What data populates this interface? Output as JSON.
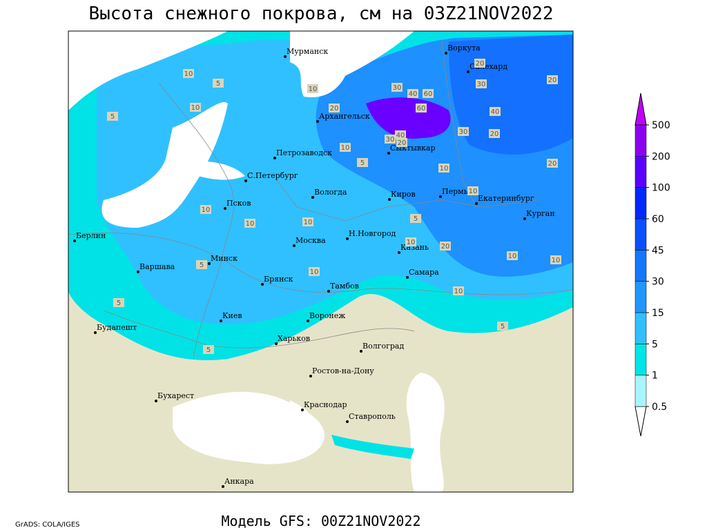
{
  "title": "Высота снежного покрова, см на 03Z21NOV2022",
  "footer": "Модель GFS: 00Z21NOV2022",
  "credit": "GrADS: COLA/IGES",
  "cities": [
    "Мурманск",
    "Воркута",
    "Салехард",
    "Архангельск",
    "Сыктывкар",
    "Петрозаводск",
    "С.Петербург",
    "Вологда",
    "Киров",
    "Пермь",
    "Екатеринбург",
    "Курган",
    "Псков",
    "Берлин",
    "Н.Новгород",
    "Москва",
    "Казань",
    "Минск",
    "Варшава",
    "Самара",
    "Брянск",
    "Тамбов",
    "Киев",
    "Воронеж",
    "Будапешт",
    "Харьков",
    "Волгоград",
    "Ростов-на-Дону",
    "Бухарест",
    "Краснодар",
    "Ставрополь",
    "Анкара"
  ],
  "contour_labels": [
    10,
    5,
    10,
    10,
    5,
    20,
    10,
    30,
    40,
    60,
    60,
    40,
    30,
    20,
    20,
    30,
    40,
    20,
    30,
    20,
    10,
    5,
    10,
    10,
    10,
    10,
    5,
    10,
    5,
    20,
    10,
    10,
    5,
    5,
    5,
    10,
    10,
    20
  ],
  "legend": {
    "levels": [
      0.5,
      1,
      5,
      15,
      30,
      45,
      60,
      100,
      200,
      500
    ],
    "colors": [
      "#ffffff",
      "#a8f4ff",
      "#00e6e6",
      "#30c0ff",
      "#1e96ff",
      "#1478ff",
      "#0a50ff",
      "#0028ff",
      "#5a00ff",
      "#8c00f0",
      "#c000ff"
    ]
  }
}
